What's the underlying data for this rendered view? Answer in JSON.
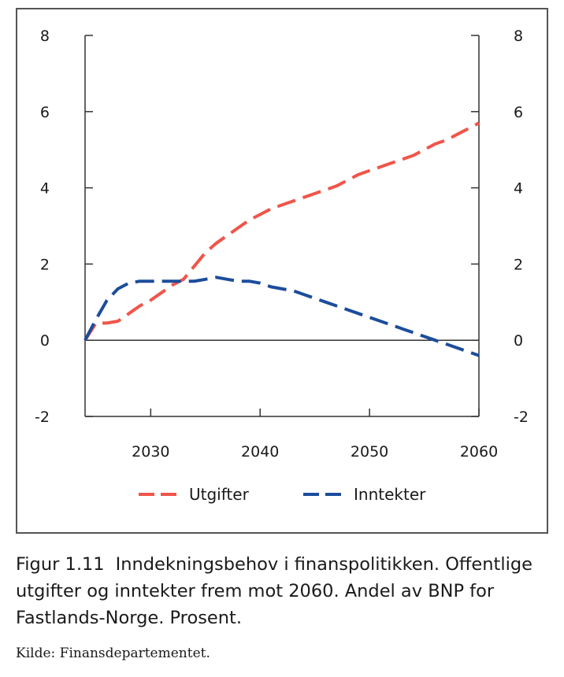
{
  "chart_data": {
    "type": "line",
    "title": "",
    "xlabel": "",
    "ylabel": "",
    "xlim": [
      2024,
      2060
    ],
    "ylim": [
      -2,
      8
    ],
    "x_ticks": [
      "2030",
      "2040",
      "2050",
      "2060"
    ],
    "y_ticks": [
      "-2",
      "0",
      "2",
      "4",
      "6",
      "8"
    ],
    "grid": false,
    "legend": "bottom",
    "series": [
      {
        "name": "Utgifter",
        "color": "#f0554a",
        "style": "dashed",
        "x": [
          2024,
          2025,
          2026,
          2027,
          2028,
          2029,
          2030,
          2031,
          2032,
          2033,
          2034,
          2035,
          2036,
          2037,
          2038,
          2039,
          2040,
          2041,
          2042,
          2043,
          2044,
          2045,
          2046,
          2047,
          2048,
          2049,
          2050,
          2051,
          2052,
          2053,
          2054,
          2055,
          2056,
          2057,
          2058,
          2059,
          2060
        ],
        "values": [
          0.0,
          0.45,
          0.45,
          0.5,
          0.7,
          0.9,
          1.05,
          1.25,
          1.45,
          1.6,
          1.95,
          2.3,
          2.55,
          2.75,
          2.95,
          3.15,
          3.3,
          3.45,
          3.55,
          3.65,
          3.75,
          3.85,
          3.95,
          4.05,
          4.2,
          4.35,
          4.45,
          4.55,
          4.65,
          4.75,
          4.85,
          5.0,
          5.15,
          5.25,
          5.4,
          5.55,
          5.7
        ]
      },
      {
        "name": "Inntekter",
        "color": "#1c4d9c",
        "style": "dashed",
        "x": [
          2024,
          2025,
          2026,
          2027,
          2028,
          2029,
          2030,
          2031,
          2032,
          2033,
          2034,
          2035,
          2036,
          2037,
          2038,
          2039,
          2040,
          2041,
          2042,
          2043,
          2044,
          2045,
          2046,
          2047,
          2048,
          2049,
          2050,
          2051,
          2052,
          2053,
          2054,
          2055,
          2056,
          2057,
          2058,
          2059,
          2060
        ],
        "values": [
          0.0,
          0.55,
          1.05,
          1.35,
          1.5,
          1.55,
          1.55,
          1.55,
          1.55,
          1.55,
          1.55,
          1.6,
          1.65,
          1.6,
          1.55,
          1.55,
          1.5,
          1.4,
          1.35,
          1.3,
          1.2,
          1.1,
          1.0,
          0.9,
          0.8,
          0.7,
          0.6,
          0.5,
          0.4,
          0.3,
          0.2,
          0.1,
          0.0,
          -0.1,
          -0.2,
          -0.3,
          -0.4
        ]
      }
    ]
  },
  "caption": {
    "label": "Figur 1.11",
    "text": "Inndekningsbehov i finanspolitikken. Offentlige utgifter og inntekter frem mot 2060. Andel av BNP for Fastlands-Norge. Prosent."
  },
  "source": "Kilde: Finansdepartementet."
}
